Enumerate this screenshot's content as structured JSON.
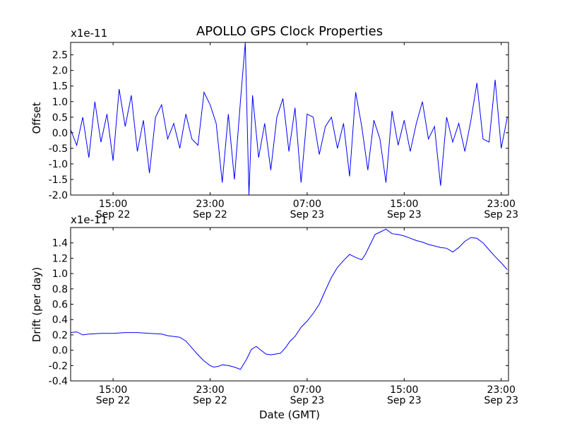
{
  "figure": {
    "title": "APOLLO GPS Clock Properties",
    "xlabel": "Date (GMT)",
    "line_color": "#0000ff"
  },
  "chart_data": [
    {
      "type": "line",
      "title": "APOLLO GPS Clock Properties",
      "ylabel": "Offset",
      "scale_label": "x1e-11",
      "ylim": [
        -2.0,
        2.9
      ],
      "yticks": [
        -2.0,
        -1.5,
        -1.0,
        -0.5,
        0.0,
        0.5,
        1.0,
        1.5,
        2.0,
        2.5
      ],
      "ytick_labels": [
        "-2.0",
        "-1.5",
        "-1.0",
        "-0.5",
        "0.0",
        "0.5",
        "1.0",
        "1.5",
        "2.0",
        "2.5"
      ],
      "xlim_hours": [
        11.5,
        47.6
      ],
      "xticks": [
        {
          "x": 15,
          "time": "15:00",
          "date": "Sep 22"
        },
        {
          "x": 23,
          "time": "23:00",
          "date": "Sep 22"
        },
        {
          "x": 31,
          "time": "07:00",
          "date": "Sep 23"
        },
        {
          "x": 39,
          "time": "15:00",
          "date": "Sep 23"
        },
        {
          "x": 47,
          "time": "23:00",
          "date": "Sep 23"
        }
      ],
      "series": [
        {
          "x": [
            11.5,
            12.0,
            12.5,
            13.0,
            13.5,
            14.0,
            14.5,
            15.0,
            15.5,
            16.0,
            16.5,
            17.0,
            17.5,
            18.0,
            18.5,
            19.0,
            19.5,
            20.0,
            20.5,
            21.0,
            21.5,
            22.0,
            22.5,
            23.0,
            23.5,
            24.0,
            24.5,
            25.0,
            25.5,
            25.9,
            26.2,
            26.5,
            27.0,
            27.5,
            28.0,
            28.5,
            29.0,
            29.5,
            30.0,
            30.5,
            31.0,
            31.5,
            32.0,
            32.5,
            33.0,
            33.5,
            34.0,
            34.5,
            35.0,
            35.5,
            36.0,
            36.5,
            37.0,
            37.5,
            38.0,
            38.5,
            39.0,
            39.5,
            40.0,
            40.5,
            41.0,
            41.5,
            42.0,
            42.5,
            43.0,
            43.5,
            44.0,
            44.5,
            45.0,
            45.5,
            46.0,
            46.5,
            47.0,
            47.5
          ],
          "values": [
            0.1,
            -0.4,
            0.5,
            -0.8,
            1.0,
            -0.3,
            0.6,
            -0.9,
            1.4,
            0.2,
            1.2,
            -0.6,
            0.4,
            -1.3,
            0.5,
            0.9,
            -0.2,
            0.3,
            -0.5,
            0.6,
            -0.2,
            -0.4,
            1.3,
            0.9,
            0.3,
            -1.6,
            0.6,
            -1.5,
            1.0,
            2.9,
            -2.0,
            1.2,
            -0.8,
            0.3,
            -1.2,
            0.5,
            1.1,
            -0.6,
            0.8,
            -1.6,
            0.6,
            0.5,
            -0.7,
            0.2,
            0.5,
            -0.5,
            0.3,
            -1.4,
            1.3,
            0.2,
            -1.2,
            0.4,
            -0.2,
            -1.6,
            0.7,
            -0.4,
            0.4,
            -0.6,
            0.3,
            1.0,
            -0.2,
            0.2,
            -1.7,
            0.5,
            -0.3,
            0.3,
            -0.6,
            0.4,
            1.6,
            -0.2,
            -0.3,
            1.7,
            -0.5,
            0.5
          ]
        }
      ]
    },
    {
      "type": "line",
      "ylabel": "Drift (per day)",
      "scale_label": "x1e-11",
      "xlabel": "Date (GMT)",
      "ylim": [
        -0.4,
        1.6
      ],
      "yticks": [
        -0.4,
        -0.2,
        0.0,
        0.2,
        0.4,
        0.6,
        0.8,
        1.0,
        1.2,
        1.4
      ],
      "ytick_labels": [
        "-0.4",
        "-0.2",
        "0.0",
        "0.2",
        "0.4",
        "0.6",
        "0.8",
        "1.0",
        "1.2",
        "1.4"
      ],
      "xlim_hours": [
        11.5,
        47.6
      ],
      "xticks": [
        {
          "x": 15,
          "time": "15:00",
          "date": "Sep 22"
        },
        {
          "x": 23,
          "time": "23:00",
          "date": "Sep 22"
        },
        {
          "x": 31,
          "time": "07:00",
          "date": "Sep 23"
        },
        {
          "x": 39,
          "time": "15:00",
          "date": "Sep 23"
        },
        {
          "x": 47,
          "time": "23:00",
          "date": "Sep 23"
        }
      ],
      "series": [
        {
          "x": [
            11.5,
            12.0,
            12.5,
            13.0,
            14.0,
            15.0,
            16.0,
            17.0,
            18.0,
            19.0,
            19.5,
            20.0,
            20.5,
            21.0,
            21.5,
            22.0,
            22.5,
            23.0,
            23.3,
            23.7,
            24.0,
            24.5,
            25.0,
            25.5,
            26.0,
            26.4,
            26.8,
            27.2,
            27.6,
            28.0,
            28.4,
            28.8,
            29.2,
            29.6,
            30.0,
            30.5,
            31.0,
            31.5,
            32.0,
            32.5,
            33.0,
            33.5,
            34.0,
            34.5,
            35.0,
            35.5,
            35.8,
            36.2,
            36.6,
            37.0,
            37.5,
            38.0,
            38.5,
            39.0,
            39.5,
            40.0,
            40.5,
            41.0,
            41.5,
            42.0,
            42.5,
            43.0,
            43.5,
            44.0,
            44.5,
            45.0,
            45.5,
            46.0,
            46.5,
            47.0,
            47.5
          ],
          "values": [
            0.23,
            0.24,
            0.2,
            0.21,
            0.22,
            0.22,
            0.23,
            0.23,
            0.22,
            0.21,
            0.19,
            0.18,
            0.17,
            0.12,
            0.03,
            -0.06,
            -0.14,
            -0.2,
            -0.22,
            -0.21,
            -0.19,
            -0.2,
            -0.22,
            -0.25,
            -0.12,
            0.01,
            0.05,
            0.0,
            -0.05,
            -0.06,
            -0.05,
            -0.04,
            0.03,
            0.12,
            0.18,
            0.3,
            0.38,
            0.48,
            0.6,
            0.78,
            0.95,
            1.08,
            1.17,
            1.25,
            1.21,
            1.18,
            1.25,
            1.38,
            1.51,
            1.54,
            1.58,
            1.52,
            1.51,
            1.49,
            1.46,
            1.43,
            1.41,
            1.38,
            1.36,
            1.34,
            1.33,
            1.28,
            1.34,
            1.42,
            1.47,
            1.46,
            1.4,
            1.31,
            1.22,
            1.14,
            1.05
          ]
        }
      ]
    }
  ]
}
